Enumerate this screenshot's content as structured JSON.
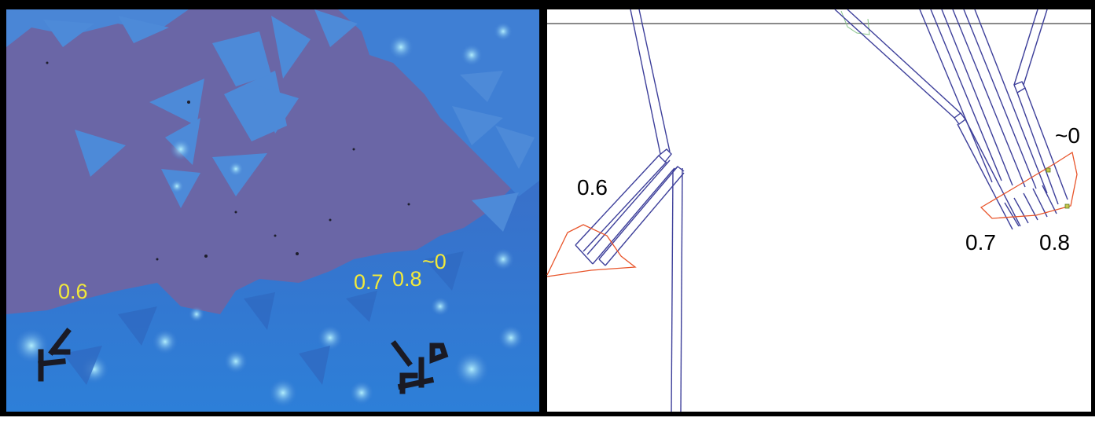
{
  "figure": {
    "left": {
      "labels": [
        "0.6",
        "0.7",
        "0.8",
        "~0"
      ],
      "colors": {
        "substrate": "#6a66a6",
        "crystal": "#3f7fd4",
        "bright": "#7fe0ff",
        "label": "#f2ea3a",
        "marker": "#1a1a24"
      }
    },
    "right": {
      "labels": [
        "0.6",
        "0.7",
        "0.8",
        "~0"
      ],
      "colors": {
        "electrode": "#3d3f9a",
        "outline": "#e8542a",
        "frame": "#000000",
        "background": "#ffffff"
      }
    }
  }
}
